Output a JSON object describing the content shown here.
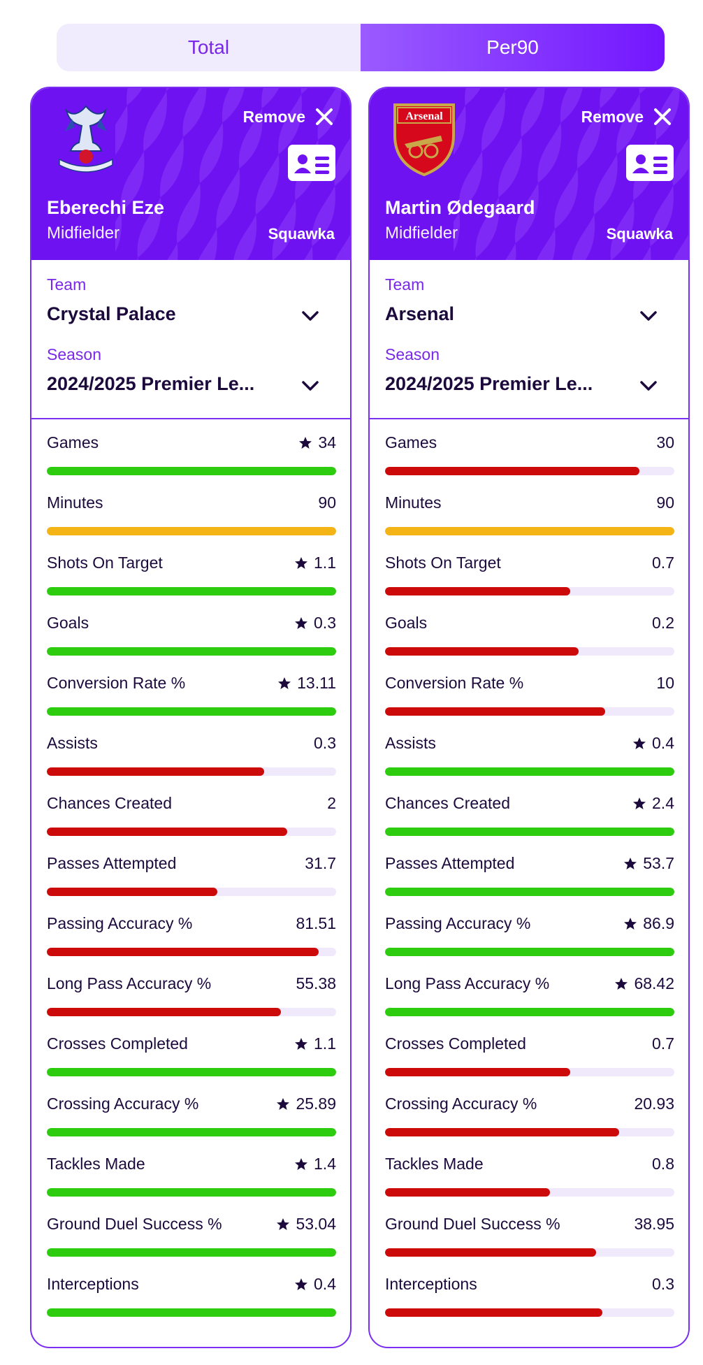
{
  "toggle": {
    "options": [
      "Total",
      "Per90"
    ],
    "selected": "Per90"
  },
  "colors": {
    "accent": "#7316ff",
    "good": "#2ecc0f",
    "bad": "#cc0a0a",
    "neutral": "#f4b416",
    "track": "#efe9fb"
  },
  "players": [
    {
      "crest_icon": "crystal-palace-crest-icon",
      "remove_label": "Remove",
      "name": "Eberechi Eze",
      "position": "Midfielder",
      "source": "Squawka",
      "team_label": "Team",
      "team": "Crystal Palace",
      "season_label": "Season",
      "season": "2024/2025 Premier Le...",
      "stats": [
        {
          "label": "Games",
          "value": "34",
          "star": true,
          "fill": 1.0,
          "color": "good"
        },
        {
          "label": "Minutes",
          "value": "90",
          "star": false,
          "fill": 1.0,
          "color": "neutral"
        },
        {
          "label": "Shots On Target",
          "value": "1.1",
          "star": true,
          "fill": 1.0,
          "color": "good"
        },
        {
          "label": "Goals",
          "value": "0.3",
          "star": true,
          "fill": 1.0,
          "color": "good"
        },
        {
          "label": "Conversion Rate %",
          "value": "13.11",
          "star": true,
          "fill": 1.0,
          "color": "good"
        },
        {
          "label": "Assists",
          "value": "0.3",
          "star": false,
          "fill": 0.75,
          "color": "bad"
        },
        {
          "label": "Chances Created",
          "value": "2",
          "star": false,
          "fill": 0.83,
          "color": "bad"
        },
        {
          "label": "Passes Attempted",
          "value": "31.7",
          "star": false,
          "fill": 0.59,
          "color": "bad"
        },
        {
          "label": "Passing Accuracy %",
          "value": "81.51",
          "star": false,
          "fill": 0.94,
          "color": "bad"
        },
        {
          "label": "Long Pass Accuracy %",
          "value": "55.38",
          "star": false,
          "fill": 0.81,
          "color": "bad"
        },
        {
          "label": "Crosses Completed",
          "value": "1.1",
          "star": true,
          "fill": 1.0,
          "color": "good"
        },
        {
          "label": "Crossing Accuracy %",
          "value": "25.89",
          "star": true,
          "fill": 1.0,
          "color": "good"
        },
        {
          "label": "Tackles Made",
          "value": "1.4",
          "star": true,
          "fill": 1.0,
          "color": "good"
        },
        {
          "label": "Ground Duel Success %",
          "value": "53.04",
          "star": true,
          "fill": 1.0,
          "color": "good"
        },
        {
          "label": "Interceptions",
          "value": "0.4",
          "star": true,
          "fill": 1.0,
          "color": "good"
        }
      ]
    },
    {
      "crest_icon": "arsenal-crest-icon",
      "crest_text": "Arsenal",
      "remove_label": "Remove",
      "name": "Martin Ødegaard",
      "position": "Midfielder",
      "source": "Squawka",
      "team_label": "Team",
      "team": "Arsenal",
      "season_label": "Season",
      "season": "2024/2025 Premier Le...",
      "stats": [
        {
          "label": "Games",
          "value": "30",
          "star": false,
          "fill": 0.88,
          "color": "bad"
        },
        {
          "label": "Minutes",
          "value": "90",
          "star": false,
          "fill": 1.0,
          "color": "neutral"
        },
        {
          "label": "Shots On Target",
          "value": "0.7",
          "star": false,
          "fill": 0.64,
          "color": "bad"
        },
        {
          "label": "Goals",
          "value": "0.2",
          "star": false,
          "fill": 0.67,
          "color": "bad"
        },
        {
          "label": "Conversion Rate %",
          "value": "10",
          "star": false,
          "fill": 0.76,
          "color": "bad"
        },
        {
          "label": "Assists",
          "value": "0.4",
          "star": true,
          "fill": 1.0,
          "color": "good"
        },
        {
          "label": "Chances Created",
          "value": "2.4",
          "star": true,
          "fill": 1.0,
          "color": "good"
        },
        {
          "label": "Passes Attempted",
          "value": "53.7",
          "star": true,
          "fill": 1.0,
          "color": "good"
        },
        {
          "label": "Passing Accuracy %",
          "value": "86.9",
          "star": true,
          "fill": 1.0,
          "color": "good"
        },
        {
          "label": "Long Pass Accuracy %",
          "value": "68.42",
          "star": true,
          "fill": 1.0,
          "color": "good"
        },
        {
          "label": "Crosses Completed",
          "value": "0.7",
          "star": false,
          "fill": 0.64,
          "color": "bad"
        },
        {
          "label": "Crossing Accuracy %",
          "value": "20.93",
          "star": false,
          "fill": 0.81,
          "color": "bad"
        },
        {
          "label": "Tackles Made",
          "value": "0.8",
          "star": false,
          "fill": 0.57,
          "color": "bad"
        },
        {
          "label": "Ground Duel Success %",
          "value": "38.95",
          "star": false,
          "fill": 0.73,
          "color": "bad"
        },
        {
          "label": "Interceptions",
          "value": "0.3",
          "star": false,
          "fill": 0.75,
          "color": "bad"
        }
      ]
    }
  ]
}
